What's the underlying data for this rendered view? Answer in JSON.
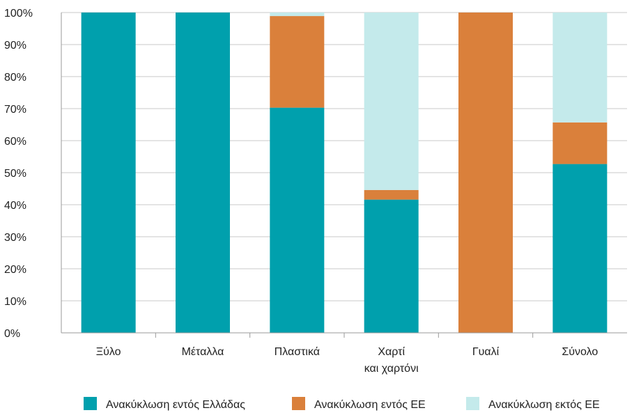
{
  "chart_data": {
    "type": "bar",
    "stacked": true,
    "categories": [
      [
        "Ξύλο"
      ],
      [
        "Μέταλλα"
      ],
      [
        "Πλαστικά"
      ],
      [
        "Χαρτί",
        "και χαρτόνι"
      ],
      [
        "Γυαλί"
      ],
      [
        "Σύνολο"
      ]
    ],
    "series": [
      {
        "name": "Ανακύκλωση εντός Ελλάδας",
        "color": "#00A0AD",
        "values": [
          100,
          100,
          70.3,
          41.6,
          0,
          52.7
        ]
      },
      {
        "name": "Ανακύκλωση εντός ΕΕ",
        "color": "#DA803B",
        "values": [
          0,
          0,
          28.6,
          3.0,
          100,
          13.0
        ]
      },
      {
        "name": "Ανακύκλωση εκτός ΕΕ",
        "color": "#C4EAEB",
        "values": [
          0,
          0,
          1.1,
          55.4,
          0,
          34.3
        ]
      }
    ],
    "ylim": [
      0,
      100
    ],
    "yticks": [
      "0%",
      "10%",
      "20%",
      "30%",
      "40%",
      "50%",
      "60%",
      "70%",
      "80%",
      "90%",
      "100%"
    ],
    "grid": true,
    "legend_position": "bottom"
  }
}
